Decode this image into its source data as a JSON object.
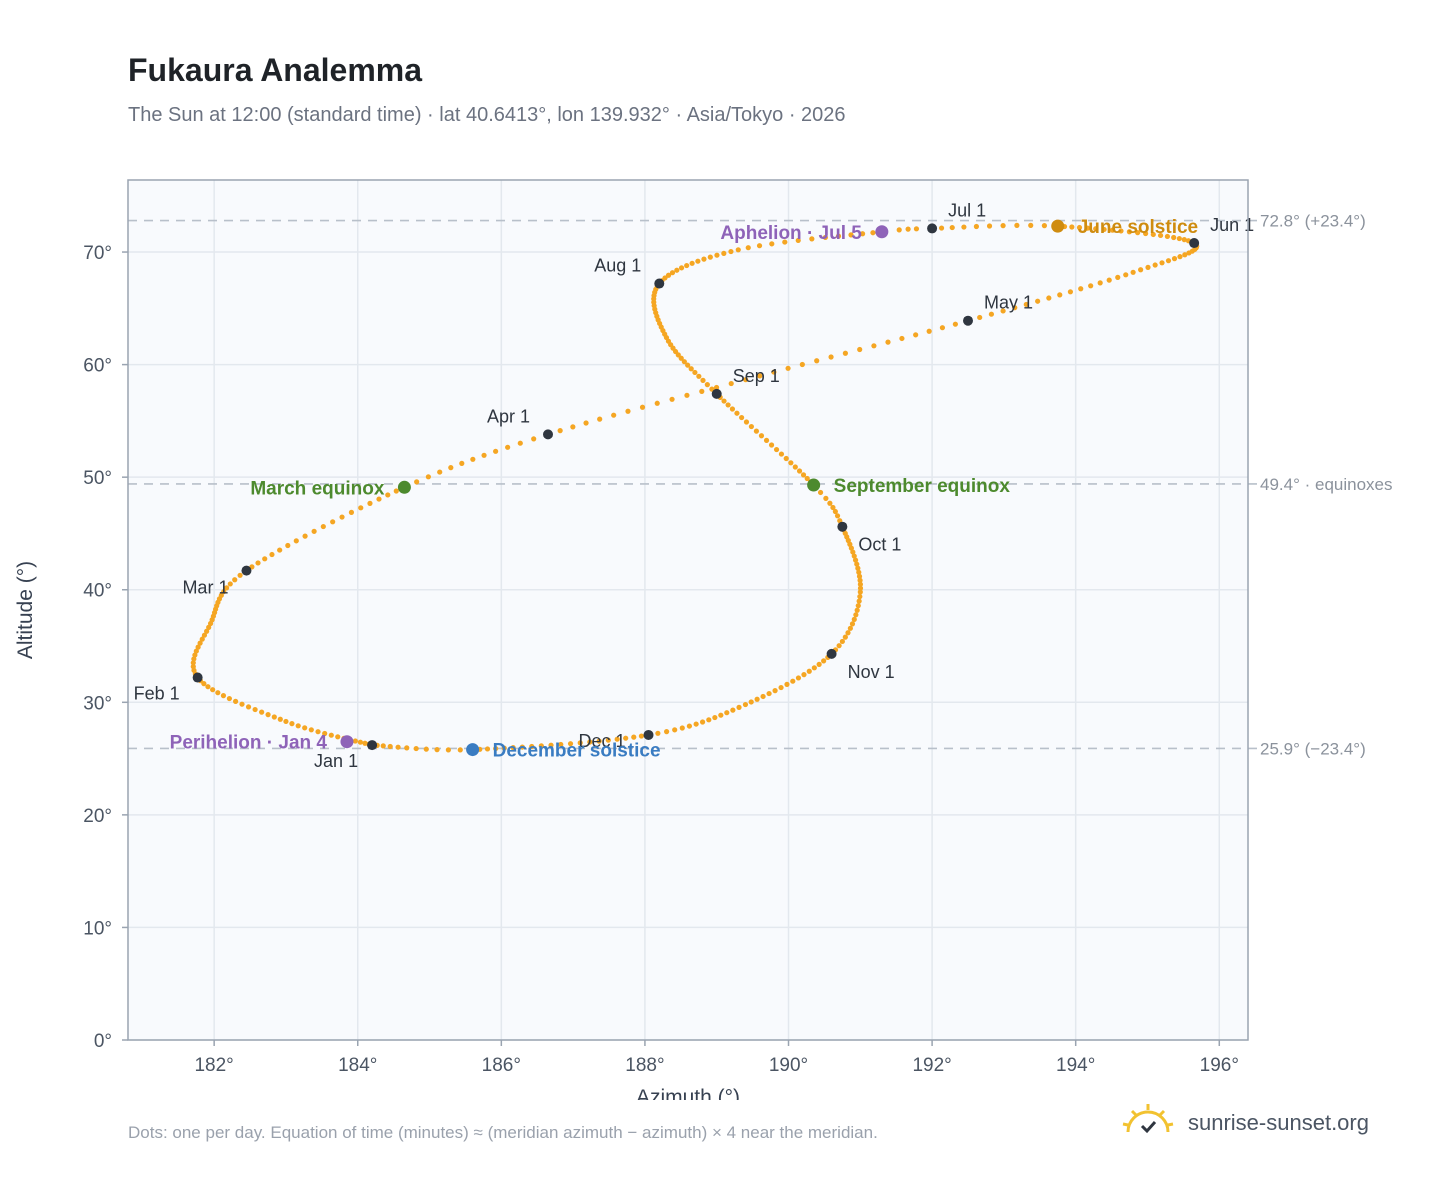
{
  "header": {
    "title": "Fukaura Analemma",
    "subtitle": "The Sun at 12:00 (standard time) · lat 40.6413°, lon 139.932° · Asia/Tokyo · 2026"
  },
  "footer": {
    "note": "Dots: one per day. Equation of time (minutes) ≈ (meridian azimuth − azimuth) × 4 near the meridian.",
    "brand": "sunrise-sunset.org",
    "brand_icon": "sun-logo-icon"
  },
  "colors": {
    "curve": "#f5a623",
    "month_marker": "#2f3640",
    "equinox": "#4d8a2e",
    "june_solstice": "#cf8c10",
    "december_solstice": "#3a7cc2",
    "apsis": "#8e63b8",
    "plot_bg": "#f8fafd",
    "grid": "#e3e8ee",
    "reference_line": "#b8c0ca"
  },
  "chart_data": {
    "type": "scatter",
    "title": "Fukaura Analemma",
    "xlabel": "Azimuth (°)",
    "ylabel": "Altitude (°)",
    "xlim": [
      180.8,
      196.4
    ],
    "ylim": [
      0,
      76.4
    ],
    "x_ticks": [
      182,
      184,
      186,
      188,
      190,
      192,
      194,
      196
    ],
    "x_tick_labels": [
      "182°",
      "184°",
      "186°",
      "188°",
      "190°",
      "192°",
      "194°",
      "196°"
    ],
    "y_ticks": [
      0,
      10,
      20,
      30,
      40,
      50,
      60,
      70
    ],
    "y_tick_labels": [
      "0°",
      "10°",
      "20°",
      "30°",
      "40°",
      "50°",
      "60°",
      "70°"
    ],
    "grid": true,
    "reference_lines": [
      {
        "y": 72.8,
        "label": "72.8° (+23.4°)"
      },
      {
        "y": 49.4,
        "label": "49.4° · equinoxes"
      },
      {
        "y": 25.9,
        "label": "25.9° (−23.4°)"
      }
    ],
    "path_anchors": [
      {
        "day": 0,
        "az": 184.2,
        "alt": 26.2
      },
      {
        "day": 15,
        "az": 183.0,
        "alt": 28.3
      },
      {
        "day": 31,
        "az": 181.77,
        "alt": 32.2
      },
      {
        "day": 45,
        "az": 181.95,
        "alt": 37.0
      },
      {
        "day": 59,
        "az": 182.45,
        "alt": 41.7
      },
      {
        "day": 78,
        "az": 184.65,
        "alt": 49.1
      },
      {
        "day": 90,
        "az": 186.65,
        "alt": 53.8
      },
      {
        "day": 105,
        "az": 189.6,
        "alt": 59.0
      },
      {
        "day": 120,
        "az": 192.5,
        "alt": 63.9
      },
      {
        "day": 136,
        "az": 194.8,
        "alt": 68.2
      },
      {
        "day": 151,
        "az": 195.65,
        "alt": 70.8
      },
      {
        "day": 171,
        "az": 193.75,
        "alt": 72.3
      },
      {
        "day": 181,
        "az": 192.0,
        "alt": 72.1
      },
      {
        "day": 185,
        "az": 191.3,
        "alt": 71.8
      },
      {
        "day": 197,
        "az": 189.3,
        "alt": 70.2
      },
      {
        "day": 212,
        "az": 188.2,
        "alt": 67.2
      },
      {
        "day": 228,
        "az": 188.3,
        "alt": 62.4
      },
      {
        "day": 243,
        "az": 189.0,
        "alt": 57.4
      },
      {
        "day": 265,
        "az": 190.35,
        "alt": 49.3
      },
      {
        "day": 273,
        "az": 190.75,
        "alt": 45.6
      },
      {
        "day": 290,
        "az": 191.0,
        "alt": 39.8
      },
      {
        "day": 304,
        "az": 190.6,
        "alt": 34.3
      },
      {
        "day": 320,
        "az": 189.4,
        "alt": 29.8
      },
      {
        "day": 334,
        "az": 188.05,
        "alt": 27.1
      },
      {
        "day": 354,
        "az": 185.6,
        "alt": 25.8
      },
      {
        "day": 365,
        "az": 184.2,
        "alt": 26.2
      }
    ],
    "month_markers": [
      {
        "label": "Jan 1",
        "az": 184.2,
        "alt": 26.2
      },
      {
        "label": "Feb 1",
        "az": 181.77,
        "alt": 32.2
      },
      {
        "label": "Mar 1",
        "az": 182.45,
        "alt": 41.7
      },
      {
        "label": "Apr 1",
        "az": 186.65,
        "alt": 53.8
      },
      {
        "label": "May 1",
        "az": 192.5,
        "alt": 63.9
      },
      {
        "label": "Jun 1",
        "az": 195.65,
        "alt": 70.8
      },
      {
        "label": "Jul 1",
        "az": 192.0,
        "alt": 72.1
      },
      {
        "label": "Aug 1",
        "az": 188.2,
        "alt": 67.2
      },
      {
        "label": "Sep 1",
        "az": 189.0,
        "alt": 57.4
      },
      {
        "label": "Oct 1",
        "az": 190.75,
        "alt": 45.6
      },
      {
        "label": "Nov 1",
        "az": 190.6,
        "alt": 34.3
      },
      {
        "label": "Dec 1",
        "az": 188.05,
        "alt": 27.1
      }
    ],
    "events": [
      {
        "label": "March equinox",
        "az": 184.65,
        "alt": 49.1,
        "color_key": "equinox"
      },
      {
        "label": "September equinox",
        "az": 190.35,
        "alt": 49.3,
        "color_key": "equinox"
      },
      {
        "label": "June solstice",
        "az": 193.75,
        "alt": 72.3,
        "color_key": "june_solstice"
      },
      {
        "label": "December solstice",
        "az": 185.6,
        "alt": 25.8,
        "color_key": "december_solstice"
      },
      {
        "label": "Perihelion · Jan 4",
        "az": 183.85,
        "alt": 26.5,
        "color_key": "apsis"
      },
      {
        "label": "Aphelion · Jul 5",
        "az": 191.3,
        "alt": 71.8,
        "color_key": "apsis"
      }
    ]
  }
}
